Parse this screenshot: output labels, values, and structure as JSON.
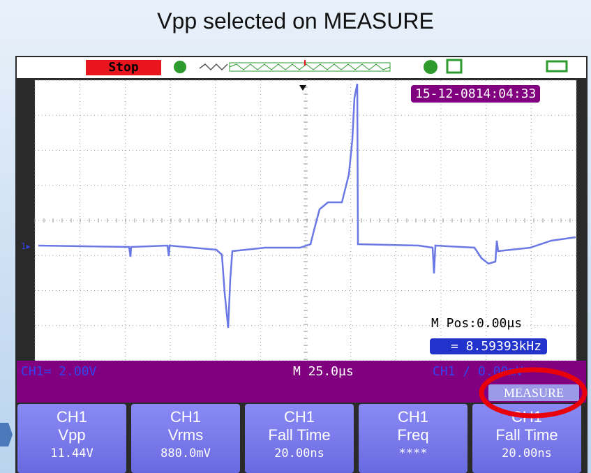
{
  "title": "Vpp selected on MEASURE",
  "status": "Stop",
  "timestamp": "15-12-0814:04:33",
  "m_position": "M Pos:0.00µs",
  "frequency": "= 8.59393kHz",
  "ch1_scale": "CH1≕ 2.00V",
  "time_base": "M 25.0µs",
  "trigger": "CH1 ∕ 0.00mV",
  "menu": "MEASURE",
  "buttons": [
    {
      "channel": "CH1",
      "measure": "Vpp",
      "value": "11.44V"
    },
    {
      "channel": "CH1",
      "measure": "Vrms",
      "value": "880.0mV"
    },
    {
      "channel": "CH1",
      "measure": "Fall Time",
      "value": "20.00ns"
    },
    {
      "channel": "CH1",
      "measure": "Freq",
      "value": "****"
    },
    {
      "channel": "CH1",
      "measure": "Fall Time",
      "value": "20.00ns"
    }
  ]
}
